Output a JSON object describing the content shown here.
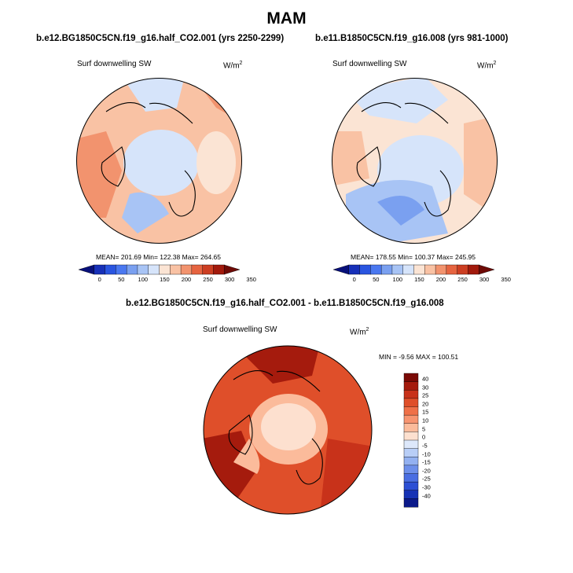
{
  "figure": {
    "season": "MAM",
    "diff_title": "b.e12.BG1850C5CN.f19_g16.half_CO2.001 - b.e11.B1850C5CN.f19_g16.008"
  },
  "chart_data": [
    {
      "type": "heatmap",
      "projection": "north-polar-stereographic",
      "title": "b.e12.BG1850C5CN.f19_g16.half_CO2.001 (yrs 2250-2299)",
      "variable": "Surf downwelling SW",
      "units_base": "W/m",
      "units_exp": "2",
      "stats": {
        "mean": "201.69",
        "min": "122.38",
        "max": "264.65",
        "text": "MEAN= 201.69  Min= 122.38  Max= 264.65"
      },
      "colorbar": {
        "orientation": "horizontal",
        "levels": [
          "0",
          "50",
          "100",
          "150",
          "200",
          "250",
          "300",
          "350"
        ],
        "colors": [
          "#08107a",
          "#1730b8",
          "#2a55e0",
          "#4a78f0",
          "#7aa0f0",
          "#a8c4f5",
          "#d6e4fa",
          "#fbe4d4",
          "#f9c2a4",
          "#f2936e",
          "#e66440",
          "#cc3e22",
          "#a21a0c",
          "#6e0a06"
        ]
      }
    },
    {
      "type": "heatmap",
      "projection": "north-polar-stereographic",
      "title": "b.e11.B1850C5CN.f19_g16.008 (yrs 981-1000)",
      "variable": "Surf downwelling SW",
      "units_base": "W/m",
      "units_exp": "2",
      "stats": {
        "mean": "178.55",
        "min": "100.37",
        "max": "245.95",
        "text": "MEAN= 178.55  Min= 100.37  Max= 245.95"
      },
      "colorbar": {
        "orientation": "horizontal",
        "levels": [
          "0",
          "50",
          "100",
          "150",
          "200",
          "250",
          "300",
          "350"
        ],
        "colors": [
          "#08107a",
          "#1730b8",
          "#2a55e0",
          "#4a78f0",
          "#7aa0f0",
          "#a8c4f5",
          "#d6e4fa",
          "#fbe4d4",
          "#f9c2a4",
          "#f2936e",
          "#e66440",
          "#cc3e22",
          "#a21a0c",
          "#6e0a06"
        ]
      }
    },
    {
      "type": "heatmap",
      "projection": "north-polar-stereographic",
      "title": "b.e12.BG1850C5CN.f19_g16.half_CO2.001 - b.e11.B1850C5CN.f19_g16.008",
      "variable": "Surf downwelling SW",
      "units_base": "W/m",
      "units_exp": "2",
      "stats": {
        "min": "-9.56",
        "max": "100.51",
        "text": "MIN =  -9.56 MAX = 100.51"
      },
      "colorbar": {
        "orientation": "vertical",
        "levels": [
          "40",
          "30",
          "25",
          "20",
          "15",
          "10",
          "5",
          "0",
          "-5",
          "-10",
          "-15",
          "-20",
          "-25",
          "-30",
          "-40"
        ],
        "colors": [
          "#7a0a05",
          "#a51b0d",
          "#c8321a",
          "#df4f2a",
          "#ef7048",
          "#f79470",
          "#fbbb9b",
          "#fde0cf",
          "#dde8fb",
          "#b8cef7",
          "#93b1f1",
          "#6d8fea",
          "#4a6ee2",
          "#2c4fd4",
          "#1632b5",
          "#0c1a8a"
        ]
      }
    }
  ]
}
